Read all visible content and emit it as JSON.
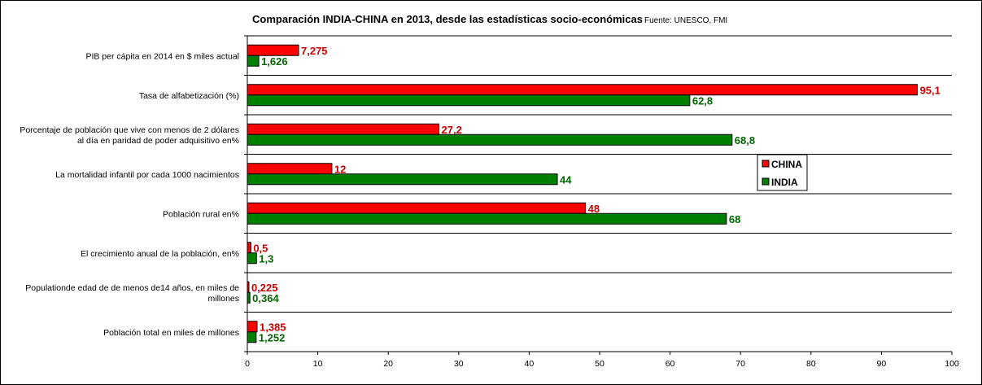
{
  "chart_data": {
    "type": "bar",
    "orientation": "horizontal",
    "title": "Comparación INDIA-CHINA en 2013, desde las estadísticas socio-económicas",
    "source": "Fuente: UNESCO, FMI",
    "categories": [
      [
        "PIB per cápita en 2014 en $ miles actual"
      ],
      [
        "Tasa de alfabetización (%)"
      ],
      [
        "Porcentaje de población que vive con menos de 2 dólares",
        "al día en paridad de poder adquisitivo en%"
      ],
      [
        "La mortalidad infantil por cada 1000 nacimientos"
      ],
      [
        "Población rural en%"
      ],
      [
        "El crecimiento anual de la población, en%"
      ],
      [
        "Populationde edad de de menos de14 años, en miles de",
        "millones"
      ],
      [
        "Población total en miles de millones"
      ]
    ],
    "series": [
      {
        "name": "CHINA",
        "color": "#ff0000",
        "label_color": "#cc0000",
        "values": [
          7.275,
          95.1,
          27.2,
          12,
          48,
          0.5,
          0.225,
          1.385
        ],
        "labels": [
          "7,275",
          "95,1",
          "27,2",
          "12",
          "48",
          "0,5",
          "0,225",
          "1,385"
        ]
      },
      {
        "name": "INDIA",
        "color": "#008000",
        "label_color": "#006600",
        "values": [
          1.626,
          62.8,
          68.8,
          44,
          68,
          1.3,
          0.364,
          1.252
        ],
        "labels": [
          "1,626",
          "62,8",
          "68,8",
          "44",
          "68",
          "1,3",
          "0,364",
          "1,252"
        ]
      }
    ],
    "xlim": [
      0,
      100
    ],
    "xticks": [
      "0",
      "10",
      "20",
      "30",
      "40",
      "50",
      "60",
      "70",
      "80",
      "90",
      "100"
    ],
    "grid": true,
    "legend_position": "right"
  }
}
